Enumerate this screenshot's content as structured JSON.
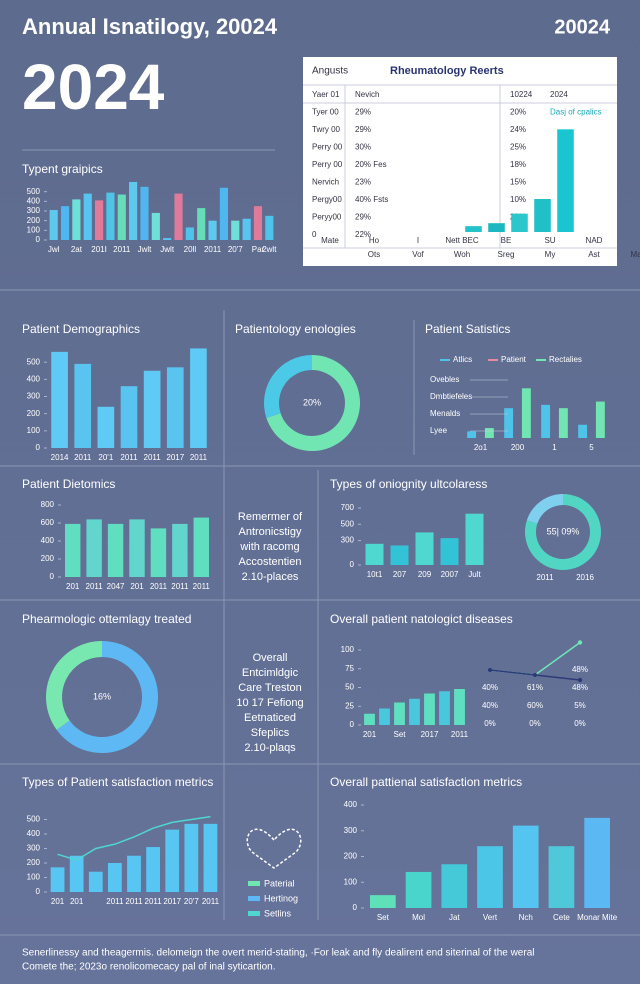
{
  "header": {
    "title": "Annual Isnatilogy, 20024",
    "year_right": "20024",
    "big_year": "2024"
  },
  "table": {
    "left_title": "Angusts",
    "title": "Rheumatology Reerts",
    "rows": [
      [
        "Yaer 01",
        "Nevich",
        "10224",
        "2024"
      ],
      [
        "Tyer 00",
        "29%",
        "20%",
        "Dasj of cpalics"
      ],
      [
        "Twry 00",
        "29%",
        "24%",
        ""
      ],
      [
        "Perry 00",
        "30%",
        "25%",
        ""
      ],
      [
        "Perry 00",
        "20% Fes",
        "18%",
        ""
      ],
      [
        "Nervich",
        "23%",
        "15%",
        ""
      ],
      [
        "Pergy00",
        "40% Fsts",
        "10%",
        ""
      ],
      [
        "Peryy00",
        "29%",
        "20%",
        ""
      ],
      [
        "0",
        "22%",
        "",
        ""
      ]
    ],
    "footer_rows": [
      [
        "Mate",
        "Ho",
        "I",
        "Nett BEC",
        "BE",
        "SU",
        "NAD"
      ],
      [
        "",
        "Ots",
        "Vof",
        "Woh",
        "Sreg",
        "My",
        "Ast",
        "May"
      ]
    ]
  },
  "chart_data": [
    {
      "type": "bar",
      "title": "Typent graipics",
      "ylim": [
        0,
        600
      ],
      "yticks": [
        0,
        100,
        200,
        300,
        400,
        500
      ],
      "categories": [
        "Jwl",
        null,
        "2at",
        null,
        "201I",
        null,
        "2011",
        null,
        "Jwlt",
        null,
        "Jwlt",
        null,
        "20ll",
        null,
        "2011",
        null,
        "20'7",
        null,
        "Par",
        "2wlt"
      ],
      "values": [
        310,
        350,
        420,
        480,
        410,
        490,
        470,
        600,
        550,
        280,
        20,
        480,
        130,
        330,
        200,
        540,
        200,
        220,
        350,
        250
      ],
      "colors": [
        "#5ec8ee",
        "#4fb6f0",
        "#6fe0d8",
        "#58c4f2",
        "#e07a9a",
        "#4fc3e8",
        "#66dcb8"
      ]
    },
    {
      "type": "bar",
      "ylim": [
        0,
        150
      ],
      "categories": [
        null,
        null,
        null,
        null,
        null
      ],
      "values": [
        8,
        12,
        25,
        45,
        140
      ],
      "colors": [
        "#22c3c9",
        "#1cb8c2",
        "#2bc7cc",
        "#20c0c8",
        "#19c6cf"
      ]
    },
    {
      "type": "bar",
      "title": "Patient Demographics",
      "ylim": [
        0,
        600
      ],
      "yticks": [
        0,
        100,
        200,
        300,
        400,
        500
      ],
      "categories": [
        "2014",
        "2011",
        "20'1",
        "2011",
        "2011",
        "2017",
        "2011"
      ],
      "values": [
        560,
        490,
        240,
        360,
        450,
        470,
        580
      ],
      "colors": [
        "#5fcaf5",
        "#5ac4f0"
      ]
    },
    {
      "type": "pie",
      "title": "Patientology enologies",
      "values": [
        70,
        30
      ],
      "colors": [
        "#72e6b2",
        "#4cc9e6"
      ],
      "center_text": "20%"
    },
    {
      "type": "bar",
      "title": "Patient Satistics",
      "ylim": [
        0,
        160
      ],
      "categories": [
        "2o1",
        "200",
        "1",
        "5"
      ],
      "series": [
        {
          "name": "Atlics",
          "color": "#4fc3e8",
          "values": [
            20,
            90,
            100,
            40
          ]
        },
        {
          "name": "Patient",
          "color": "#e88aa6",
          "values": [
            null,
            null,
            null,
            null
          ]
        },
        {
          "name": "Rectalies",
          "color": "#72e6b2",
          "values": [
            30,
            150,
            90,
            110
          ]
        }
      ],
      "annotations": [
        "Ovebles",
        "Dmbtiefeles",
        "Menalds",
        "Lyee"
      ]
    },
    {
      "type": "bar",
      "title": "Patient Dietomics",
      "ylim": [
        0,
        800
      ],
      "yticks": [
        0,
        200,
        400,
        600,
        800
      ],
      "categories": [
        "201",
        "2011",
        "2047",
        "201",
        "2011",
        "2011",
        "2011"
      ],
      "values": [
        590,
        640,
        590,
        640,
        540,
        590,
        660
      ],
      "colors": [
        "#5fdfc0",
        "#62d6cc"
      ]
    },
    {
      "type": "bar",
      "title": "Types of oniognity ultcolaress",
      "ylim": [
        0,
        700
      ],
      "yticks": [
        0,
        300,
        500,
        700
      ],
      "categories": [
        "10t1",
        "207",
        "209",
        "2007",
        "Jult"
      ],
      "values": [
        260,
        240,
        400,
        330,
        630
      ],
      "colors": [
        "#4fd8d0",
        "#33c3d6"
      ]
    },
    {
      "type": "pie",
      "values": [
        80,
        20
      ],
      "colors": [
        "#52d6c4",
        "#7fd0ee"
      ],
      "center_text": "55| 09%",
      "categories": [
        "2011",
        "2016"
      ]
    },
    {
      "type": "pie",
      "title": "Phearmologic ottemlagy treated",
      "values": [
        65,
        35
      ],
      "colors": [
        "#5eb8f3",
        "#78e8b0"
      ],
      "center_text": "16%"
    },
    {
      "type": "bar",
      "title": "Overall patient natologict diseases",
      "ylim": [
        0,
        100
      ],
      "yticks": [
        0,
        25,
        50,
        75,
        100
      ],
      "categories": [
        "201",
        null,
        "Set",
        null,
        "2017",
        null,
        "2011"
      ],
      "values": [
        15,
        22,
        30,
        35,
        42,
        45,
        48
      ],
      "colors": [
        "#5ee0c0",
        "#49c7dc"
      ]
    },
    {
      "type": "line",
      "ylim": [
        0,
        100
      ],
      "categories": [
        null,
        null,
        null
      ],
      "series": [
        {
          "color": "#6ee6b8",
          "values": [
            40,
            30,
            95
          ]
        },
        {
          "color": "#2e3a78",
          "values": [
            40,
            30,
            20
          ]
        }
      ],
      "annotations": [
        [
          "",
          "",
          "48%"
        ],
        [
          "40%",
          "61%",
          "48%"
        ],
        [
          "40%",
          "60%",
          "5%"
        ],
        [
          "0%",
          "0%",
          "0%"
        ]
      ]
    },
    {
      "type": "bar",
      "title": "Types of Patient satisfaction metrics",
      "ylim": [
        0,
        600
      ],
      "yticks": [
        0,
        100,
        200,
        300,
        400,
        500
      ],
      "categories": [
        "201",
        "201",
        null,
        "2011",
        "2011",
        "2011",
        "2017",
        "20'7",
        "2011"
      ],
      "series": [
        {
          "color": "#58c6f2",
          "values": [
            170,
            250,
            140,
            200,
            250,
            310,
            430,
            470,
            470
          ]
        },
        {
          "color": "#4fd6d0",
          "kind": "line",
          "values": [
            260,
            220,
            300,
            330,
            380,
            440,
            480,
            500,
            520
          ]
        }
      ]
    },
    {
      "type": "bar",
      "title": "Overall pattienal satisfaction metrics",
      "ylim": [
        0,
        400
      ],
      "yticks": [
        0,
        100,
        200,
        300,
        400
      ],
      "categories": [
        "Set",
        "Mol",
        "Jat",
        "Vert",
        "Nch",
        "Cete",
        "Monar Mite"
      ],
      "values": [
        50,
        140,
        170,
        240,
        320,
        240,
        350
      ],
      "colors": [
        "#5ee0b8",
        "#49d4cc",
        "#45c8d8",
        "#4cc6e6",
        "#55c4f0",
        "#4fc9d9",
        "#5cb8f3"
      ]
    }
  ],
  "text_blocks": [
    [
      "Remermer of",
      "Antronicstigy",
      "with racomg",
      "Accostentien",
      "2.10-places"
    ],
    [
      "Overall",
      "Entcimldgic",
      "Care Treston",
      "10 17 Fefiong",
      "Eetnaticed",
      "Sfeplics",
      "2.10-plaqs"
    ]
  ],
  "side_legend": [
    {
      "name": "Paterial",
      "color": "#72e6b2"
    },
    {
      "name": "Hertinog",
      "color": "#5eb8f3"
    },
    {
      "name": "Setlins",
      "color": "#4fd6d0"
    }
  ],
  "footer": [
    "Senerlinessy and theagermis. delomeign the overt merid-stating, ·For leak and fly dealirent end siterinal of the weral",
    "Comete the; 2023o renolicomecacy pal of inal syticartion."
  ]
}
